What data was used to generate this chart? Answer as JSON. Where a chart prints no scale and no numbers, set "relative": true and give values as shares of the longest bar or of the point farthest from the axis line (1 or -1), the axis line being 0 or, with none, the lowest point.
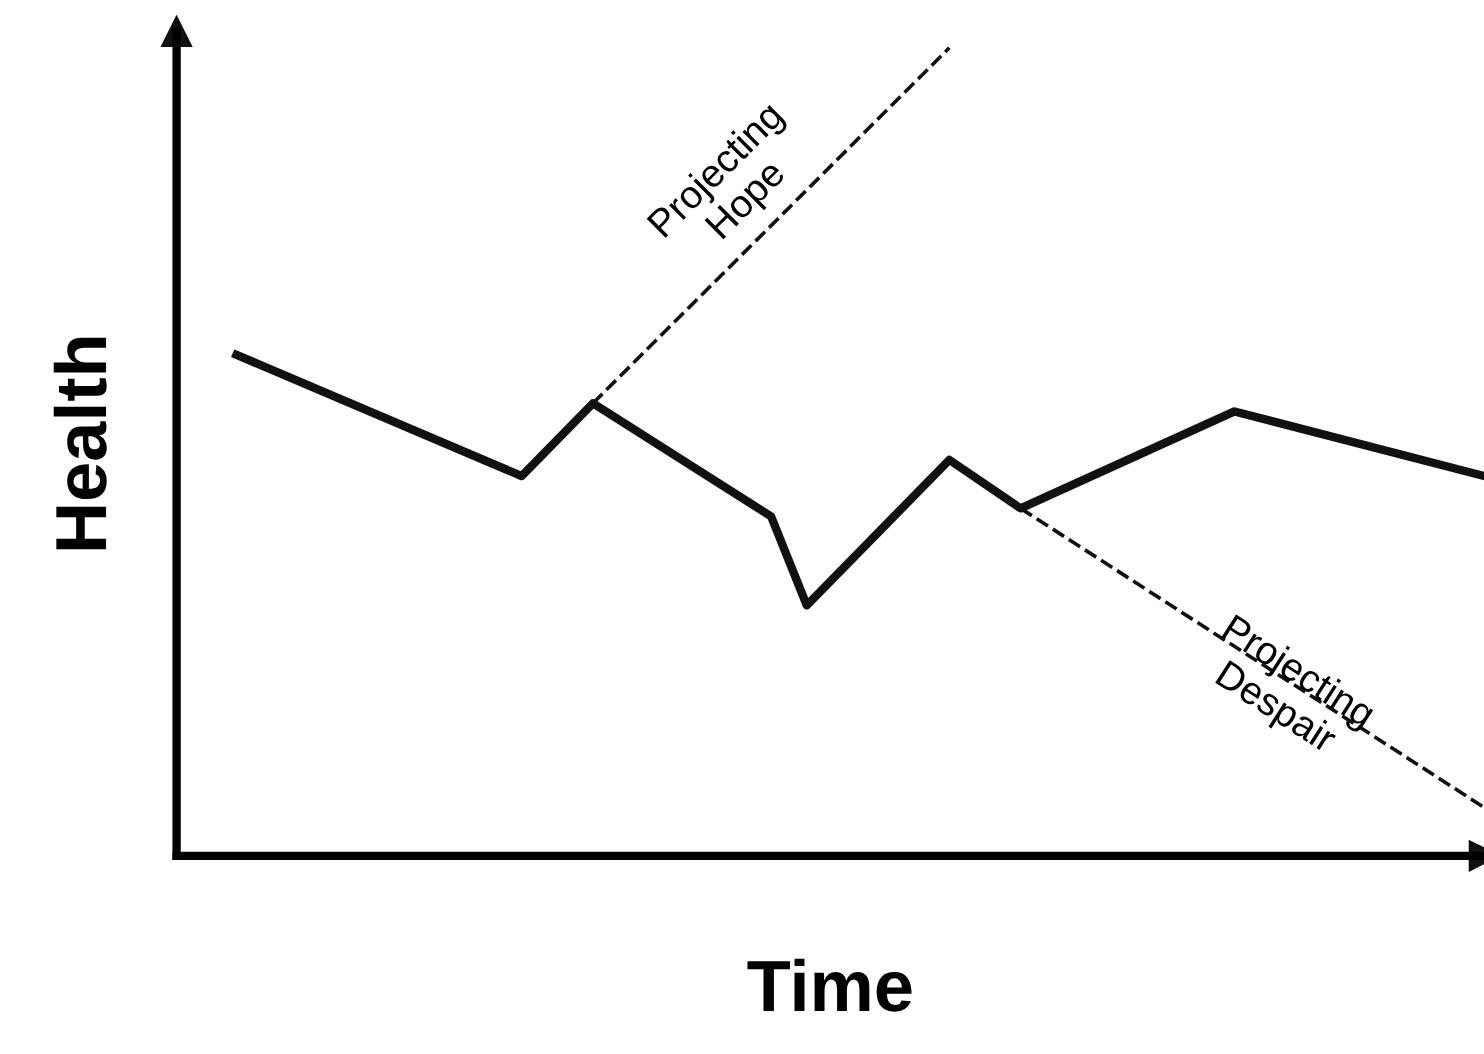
{
  "chart_data": {
    "type": "line",
    "relative": true,
    "xlabel": "Time",
    "ylabel": "Health",
    "marker": "none",
    "categories": [
      null,
      null,
      null,
      null,
      null,
      null,
      null,
      null,
      null,
      null,
      null,
      null,
      null,
      null,
      null,
      null,
      null,
      null,
      null,
      null,
      null,
      null,
      null,
      null,
      null,
      null,
      null,
      null,
      null,
      null,
      null,
      null,
      null,
      null,
      null,
      null
    ],
    "series": [
      {
        "color": "#111111",
        "line_style": "solid",
        "values": [
          0.62,
          null,
          null,
          null,
          null,
          null,
          null,
          null,
          0.47,
          null,
          0.56,
          null,
          null,
          null,
          null,
          0.42,
          0.31,
          null,
          null,
          null,
          0.49,
          null,
          0.43,
          null,
          null,
          null,
          null,
          null,
          0.55,
          null,
          null,
          null,
          null,
          null,
          null,
          0.47
        ]
      },
      {
        "color": "#111111",
        "line_style": "dashed",
        "values": [
          null,
          null,
          null,
          null,
          null,
          null,
          null,
          null,
          null,
          null,
          0.56,
          null,
          null,
          null,
          null,
          null,
          null,
          null,
          null,
          null,
          1.0,
          null,
          null,
          null,
          null,
          null,
          null,
          null,
          null,
          null,
          null,
          null,
          null,
          null,
          null,
          null
        ]
      },
      {
        "color": "#111111",
        "line_style": "dashed",
        "values": [
          null,
          null,
          null,
          null,
          null,
          null,
          null,
          null,
          null,
          null,
          null,
          null,
          null,
          null,
          null,
          null,
          null,
          null,
          null,
          null,
          null,
          null,
          0.43,
          null,
          null,
          null,
          null,
          null,
          null,
          null,
          null,
          null,
          null,
          null,
          null,
          0.06
        ]
      }
    ],
    "annotations": [
      "Projecting\nHope",
      "Projecting\nDespair"
    ]
  }
}
